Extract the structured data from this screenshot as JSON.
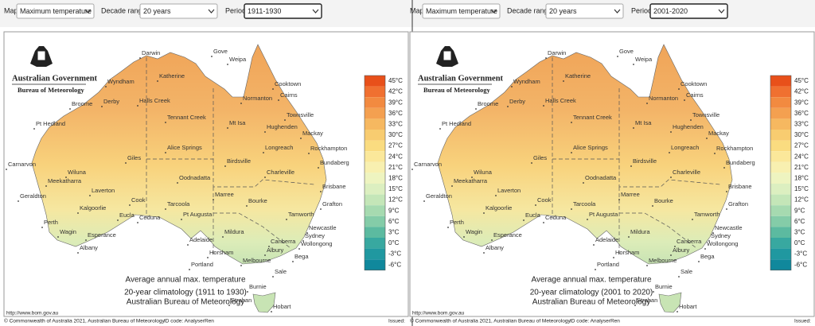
{
  "controls": {
    "map_label": "Map",
    "decade_label": "Decade range",
    "period_label": "Period"
  },
  "panels": [
    {
      "map_value": "Maximum temperature",
      "decade_value": "20 years",
      "period_value": "1911-1930",
      "caption": [
        "Average annual max. temperature",
        "20-year climatology (1911 to 1930)",
        "Australian Bureau of Meteorology"
      ]
    },
    {
      "map_value": "Maximum temperature",
      "decade_value": "20 years",
      "period_value": "2001-2020",
      "caption": [
        "Average annual max. temperature",
        "20-year climatology (2001 to 2020)",
        "Australian Bureau of Meteorology"
      ]
    }
  ],
  "logo": {
    "line1": "Australian Government",
    "line2": "Bureau of Meteorology"
  },
  "cities": [
    "Darwin",
    "Gove",
    "Weipa",
    "Katherine",
    "Wyndham",
    "Derby",
    "Halls Creek",
    "Broome",
    "Normanton",
    "Cooktown",
    "Cairns",
    "Townsville",
    "Tennant Creek",
    "Mt Isa",
    "Hughenden",
    "Mackay",
    "Pt Hedland",
    "Alice Springs",
    "Longreach",
    "Rockhampton",
    "Giles",
    "Birdsville",
    "Carnarvon",
    "Wiluna",
    "Charleville",
    "Bundaberg",
    "Meekatharra",
    "Oodnadatta",
    "Brisbane",
    "Laverton",
    "Geraldton",
    "Cook",
    "Marree",
    "Bourke",
    "Grafton",
    "Tarcoola",
    "Kalgoorlie",
    "Eucla",
    "Ceduna",
    "Pt Augusta",
    "Tamworth",
    "Perth",
    "Newcastle",
    "Wagin",
    "Esperance",
    "Sydney",
    "Adelaide",
    "Mildura",
    "Wollongong",
    "Canberra",
    "Albany",
    "Horsham",
    "Albury",
    "Bega",
    "Portland",
    "Melbourne",
    "Sale",
    "Burnie",
    "Strahan",
    "Hobart"
  ],
  "legend": {
    "labels": [
      "45°C",
      "42°C",
      "39°C",
      "36°C",
      "33°C",
      "30°C",
      "27°C",
      "24°C",
      "21°C",
      "18°C",
      "15°C",
      "12°C",
      "9°C",
      "6°C",
      "3°C",
      "0°C",
      "-3°C",
      "-6°C"
    ],
    "colors": [
      "#e8501a",
      "#f07030",
      "#f28a40",
      "#f4a050",
      "#f6b860",
      "#f8cc70",
      "#fadc80",
      "#fbe89a",
      "#f8f0b0",
      "#eef4c0",
      "#dcefc0",
      "#c4e6b8",
      "#a6dab0",
      "#84cca8",
      "#5cbaa0",
      "#38a8a0",
      "#2098a0",
      "#10889c"
    ]
  },
  "footer": {
    "url": "http://www.bom.gov.au",
    "copyright": "© Commonwealth of Australia 2021, Australian Bureau of Meteorology",
    "id_code": "ID code: AnalyserRen",
    "issued": "Issued:"
  }
}
